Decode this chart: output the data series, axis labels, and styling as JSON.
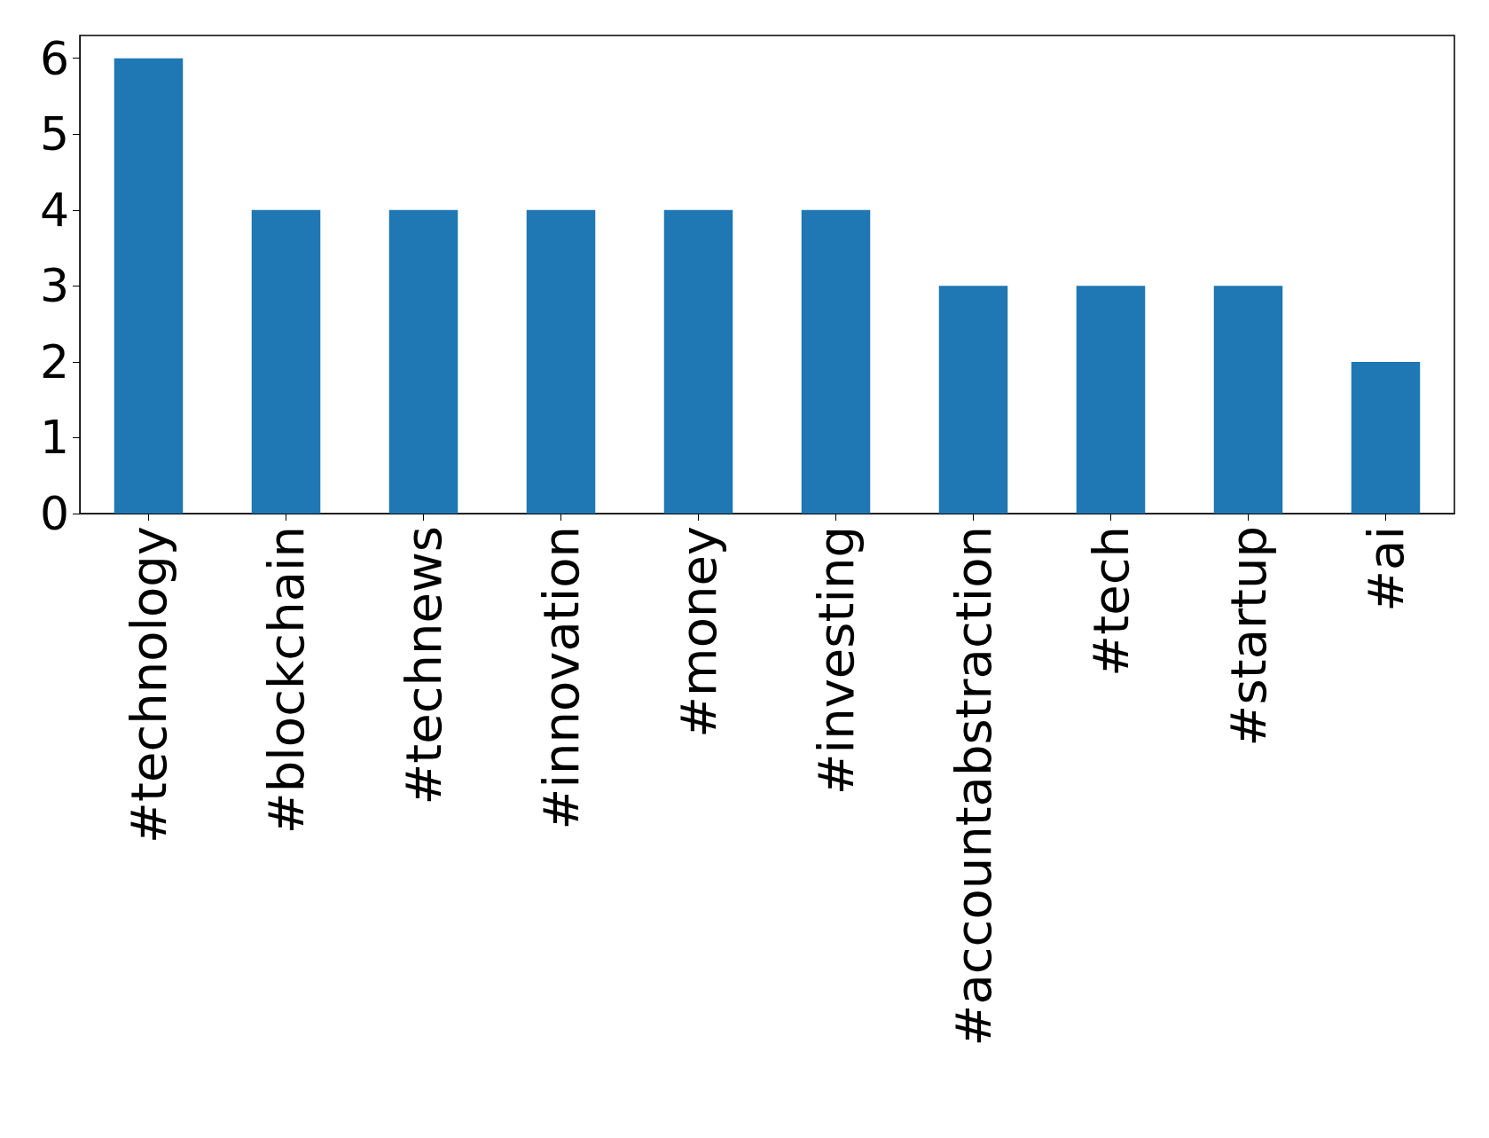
{
  "chart_data": {
    "type": "bar",
    "categories": [
      "#technology",
      "#blockchain",
      "#technews",
      "#innovation",
      "#money",
      "#investing",
      "#accountabstraction",
      "#tech",
      "#startup",
      "#ai"
    ],
    "values": [
      6,
      4,
      4,
      4,
      4,
      4,
      3,
      3,
      3,
      2
    ],
    "color": "#1f77b4",
    "ylim": [
      0,
      6.3
    ],
    "yticks": [
      0,
      1,
      2,
      3,
      4,
      5,
      6
    ],
    "grid": false
  }
}
